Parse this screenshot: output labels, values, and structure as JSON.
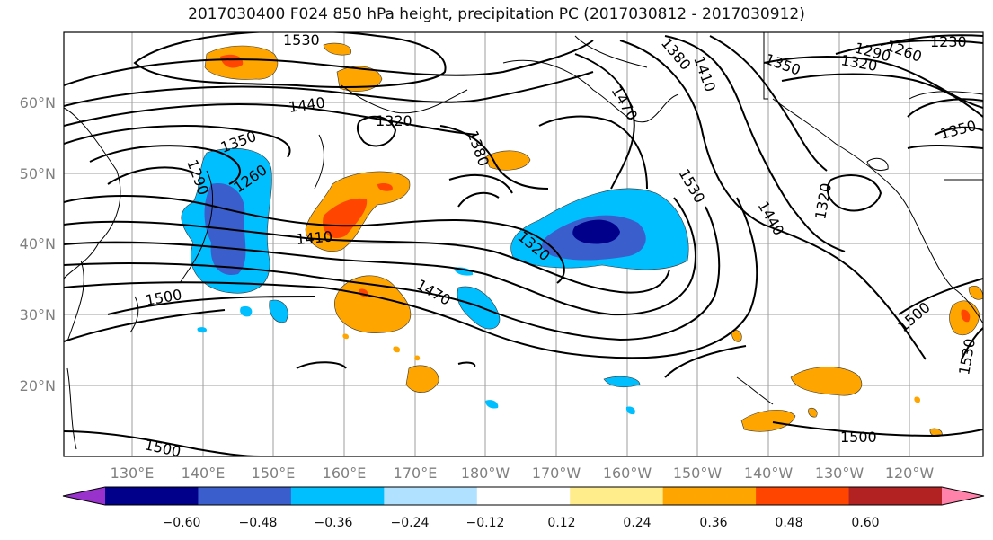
{
  "title": "2017030400 F024 850 hPa height, precipitation PC (2017030812 - 2017030912)",
  "lat_labels": [
    "60°N",
    "50°N",
    "40°N",
    "30°N",
    "20°N"
  ],
  "lon_labels": [
    "130°E",
    "140°E",
    "150°E",
    "160°E",
    "170°E",
    "180°W",
    "170°W",
    "160°W",
    "150°W",
    "140°W",
    "130°W",
    "120°W"
  ],
  "contour_labels": [
    "1530",
    "1440",
    "1320",
    "1350",
    "1260",
    "1290",
    "1410",
    "1500",
    "1380",
    "1320",
    "1470",
    "1530",
    "1410",
    "1440",
    "1320",
    "1350",
    "1320",
    "1290",
    "1260",
    "1230",
    "1350",
    "1500",
    "1530",
    "1500",
    "1500",
    "1470",
    "1380"
  ],
  "colorbar": {
    "colors": [
      "#9932cc",
      "#00008b",
      "#3a5fcd",
      "#00bfff",
      "#b0e2ff",
      "#ffffff",
      "#ffec8b",
      "#ffa500",
      "#ff4500",
      "#b22222",
      "#ff82ab"
    ],
    "tick_labels": [
      "−0.60",
      "−0.48",
      "−0.36",
      "−0.24",
      "−0.12",
      "0.12",
      "0.24",
      "0.36",
      "0.48",
      "0.60"
    ]
  }
}
